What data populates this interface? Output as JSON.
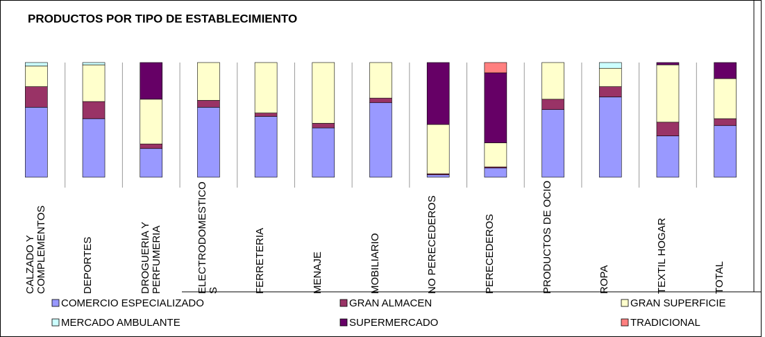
{
  "chart_data": {
    "type": "stacked_bar_100",
    "title": "PRODUCTOS POR TIPO DE ESTABLECIMIENTO",
    "categories": [
      "CALZADO Y COMPLEMENTOS",
      "DEPORTES",
      "DROGUERIA Y PERFUMERIA",
      "ELECTRODOMESTICOS",
      "FERRETERIA",
      "MENAJE",
      "MOBILIARIO",
      "NO PERECEDEROS",
      "PERECEDEROS",
      "PRODUCTOS DE OCIO",
      "ROPA",
      "TEXTIL HOGAR",
      "TOTAL"
    ],
    "series": [
      {
        "name": "COMERCIO ESPECIALIZADO",
        "color": "#9999ff",
        "values": [
          61,
          51,
          25,
          61,
          53,
          43,
          65,
          2,
          8,
          59,
          70,
          36,
          45
        ]
      },
      {
        "name": "GRAN ALMACEN",
        "color": "#993366",
        "values": [
          18,
          15,
          4,
          6,
          3,
          4,
          4,
          1,
          1,
          9,
          9,
          12,
          6
        ]
      },
      {
        "name": "GRAN SUPERFICIE",
        "color": "#ffffcc",
        "values": [
          18,
          32,
          39,
          33,
          44,
          53,
          31,
          43,
          21,
          32,
          16,
          50,
          35
        ]
      },
      {
        "name": "MERCADO AMBULANTE",
        "color": "#ccffff",
        "values": [
          3,
          2,
          0,
          0,
          0,
          0,
          0,
          0,
          0,
          0,
          5,
          0,
          0
        ]
      },
      {
        "name": "SUPERMERCADO",
        "color": "#660066",
        "values": [
          0,
          0,
          32,
          0,
          0,
          0,
          0,
          54,
          61,
          0,
          0,
          2,
          14
        ]
      },
      {
        "name": "TRADICIONAL",
        "color": "#ff8080",
        "values": [
          0,
          0,
          0,
          0,
          0,
          0,
          0,
          0,
          9,
          0,
          0,
          0,
          0
        ]
      }
    ],
    "ylim": [
      0,
      100
    ]
  }
}
